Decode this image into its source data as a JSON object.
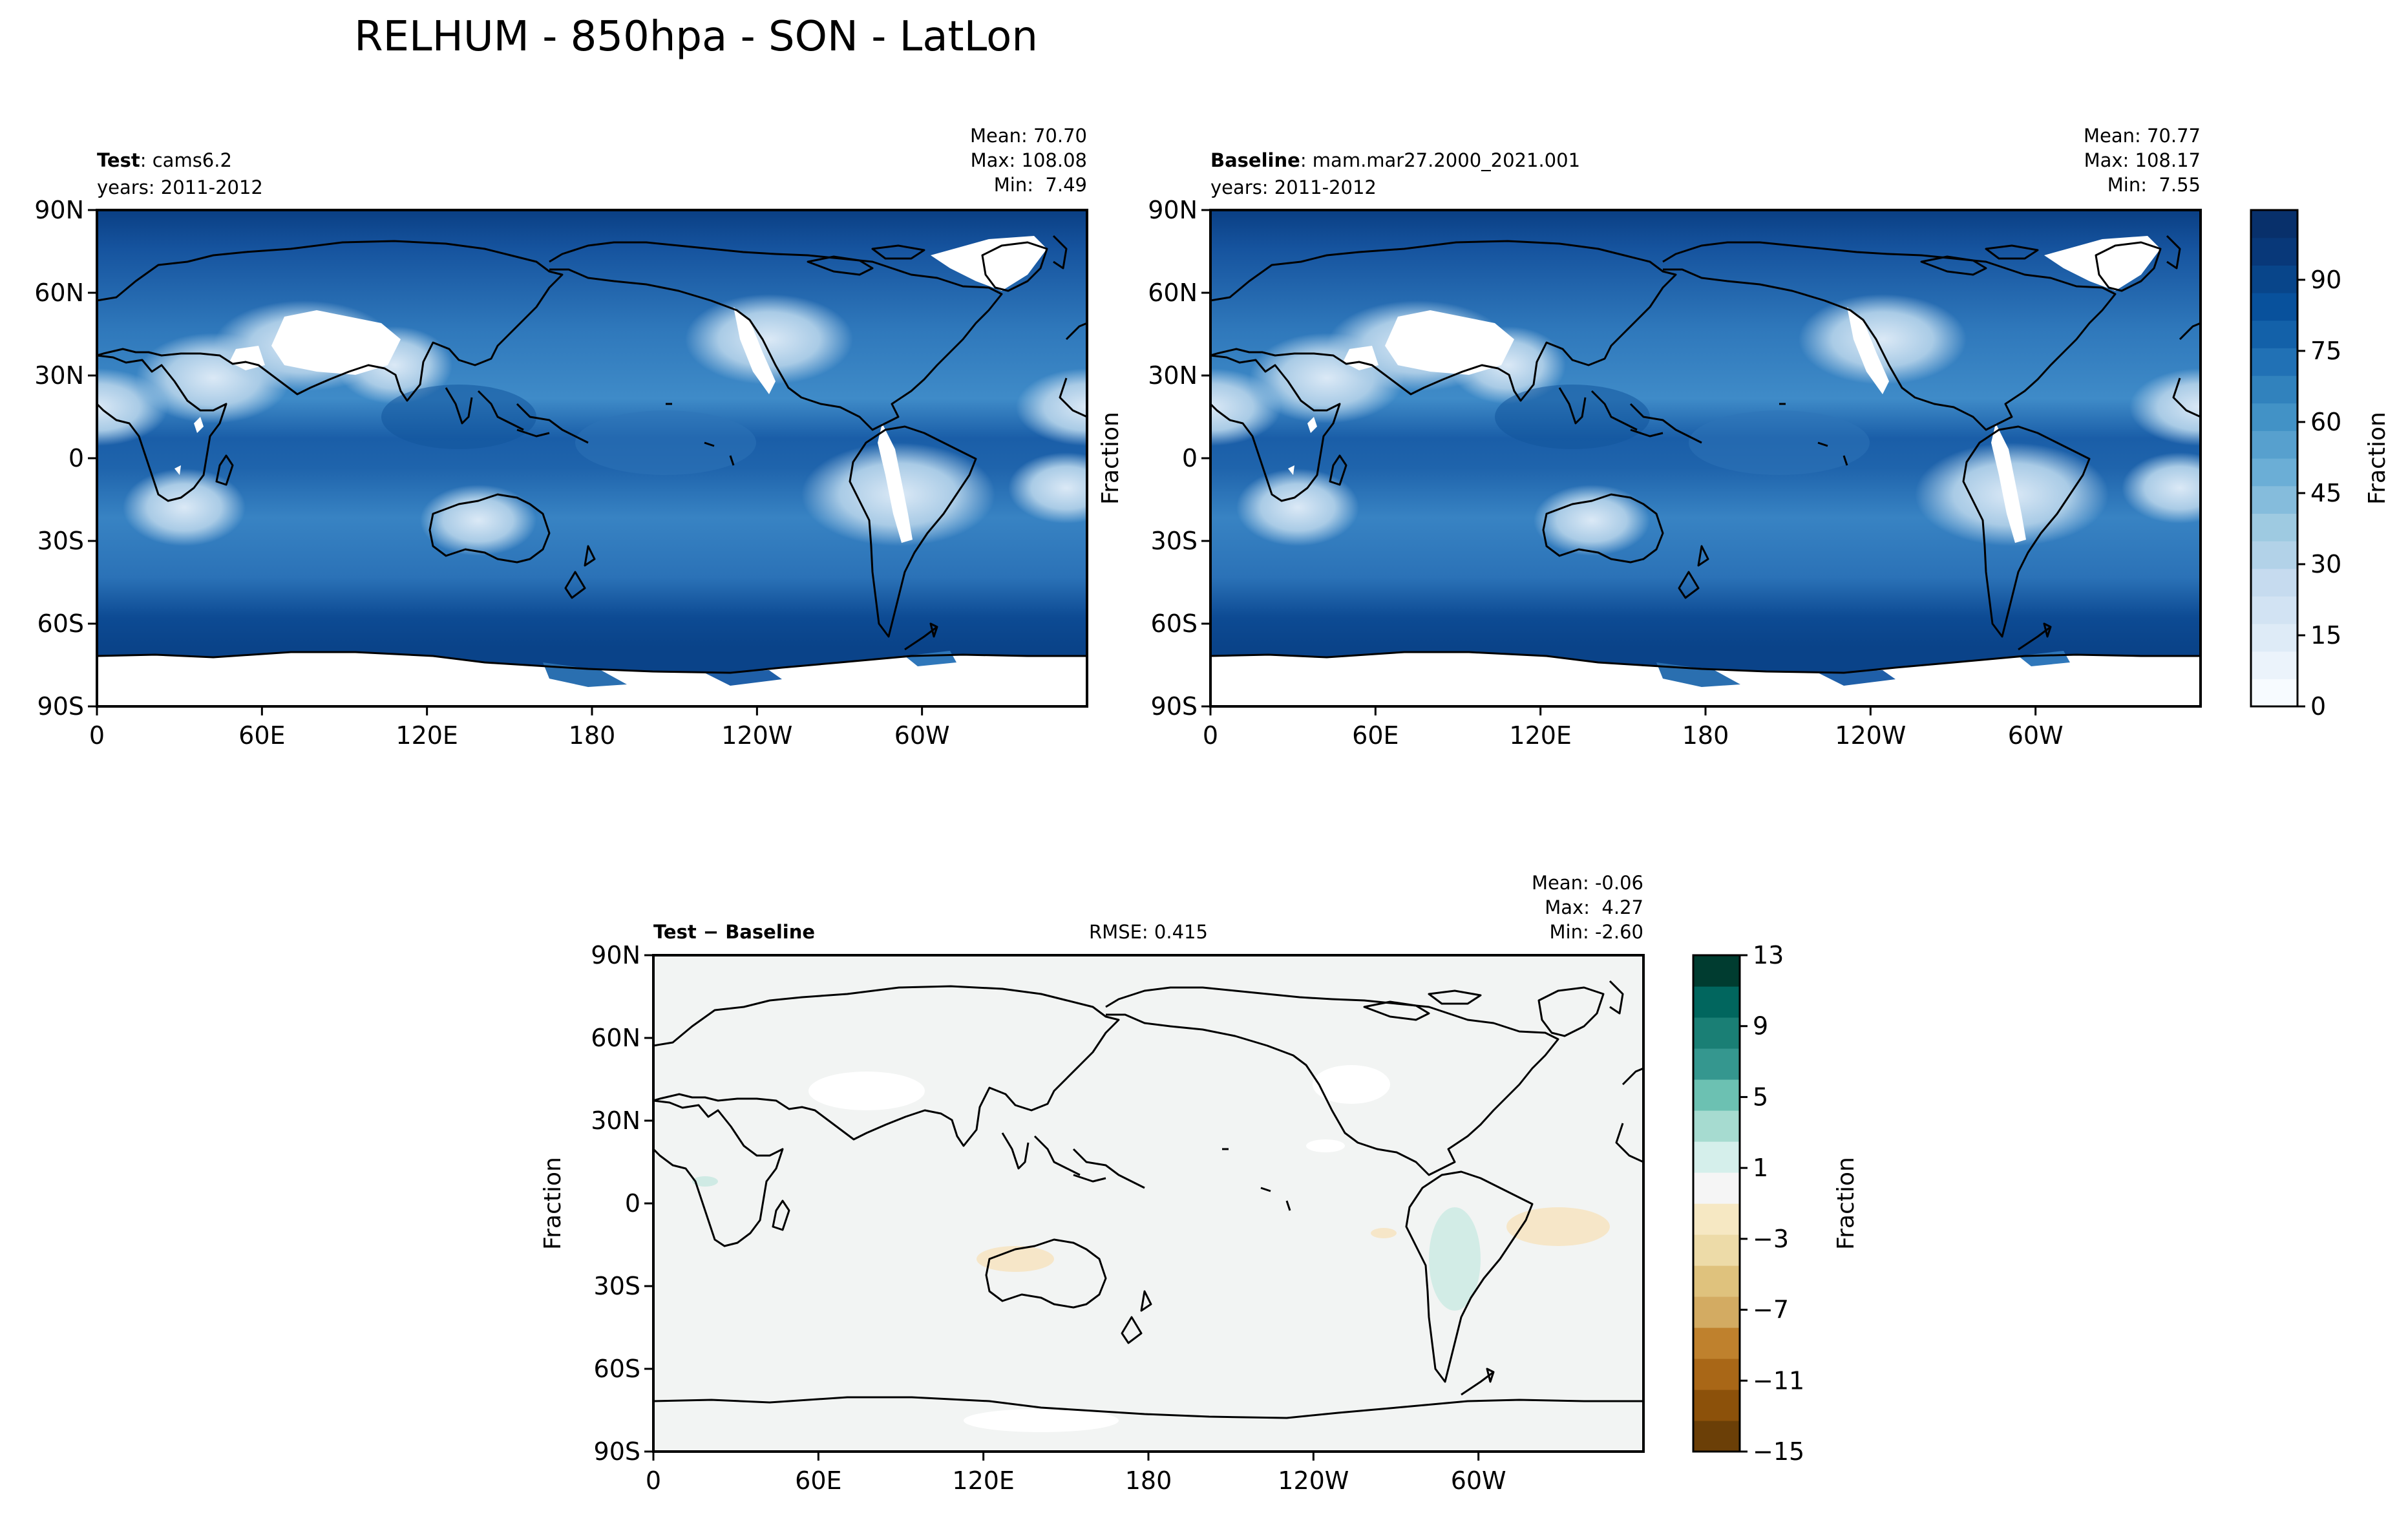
{
  "suptitle": "RELHUM - 850hpa - SON - LatLon",
  "lat_ticks": [
    "90N",
    "60N",
    "30N",
    "0",
    "30S",
    "60S",
    "90S"
  ],
  "lon_ticks": [
    "0",
    "60E",
    "120E",
    "180",
    "120W",
    "60W"
  ],
  "panels": {
    "test": {
      "label_bold": "Test",
      "label_rest": ": cams6.2",
      "years": "years: 2011-2012",
      "stats": [
        "Mean: 70.70",
        "Max: 108.08",
        "Min:  7.49"
      ]
    },
    "baseline": {
      "label_bold": "Baseline",
      "label_rest": ": mam.mar27.2000_2021.001",
      "years": "years: 2011-2012",
      "stats": [
        "Mean: 70.77",
        "Max: 108.17",
        "Min:  7.55"
      ],
      "ylabel": "Fraction"
    },
    "diff": {
      "label": "Test − Baseline",
      "rmse": "RMSE: 0.415",
      "stats": [
        "Mean: -0.06",
        "Max:  4.27",
        "Min: -2.60"
      ],
      "ylabel": "Fraction"
    }
  },
  "colorbars": {
    "main": {
      "label": "Fraction",
      "ticks": [
        "90",
        "75",
        "60",
        "45",
        "30",
        "15",
        "0"
      ],
      "colors_bottom_to_top": [
        "#f7fbff",
        "#ebf3fb",
        "#deebf7",
        "#d2e3f3",
        "#c6dbef",
        "#b2d2e8",
        "#9ecae1",
        "#85bcdc",
        "#6baed6",
        "#57a0ce",
        "#4292c6",
        "#3182bd",
        "#2171b5",
        "#1361a9",
        "#08519c",
        "#08458a",
        "#083879",
        "#08306b"
      ]
    },
    "diff": {
      "label": "Fraction",
      "ticks": [
        "13",
        "9",
        "5",
        "1",
        "−3",
        "−7",
        "−11",
        "−15"
      ],
      "colors_bottom_to_top": [
        "#6b3f07",
        "#8c510a",
        "#a96717",
        "#bf812d",
        "#d3ab62",
        "#dfc27d",
        "#eddba8",
        "#f6e8c3",
        "#f5f5f5",
        "#d5efeb",
        "#a6dbd0",
        "#6cc1b2",
        "#35978f",
        "#1a7f75",
        "#01665e",
        "#003c30"
      ]
    }
  },
  "colors": {
    "ocean_main": "#2a6fb4",
    "land_main": "#3d86c4",
    "dry_main": "#cfe1f2",
    "storm_band": "#0c4a92",
    "antarctica": "#ffffff",
    "diff_background": "#f2f4f3"
  }
}
